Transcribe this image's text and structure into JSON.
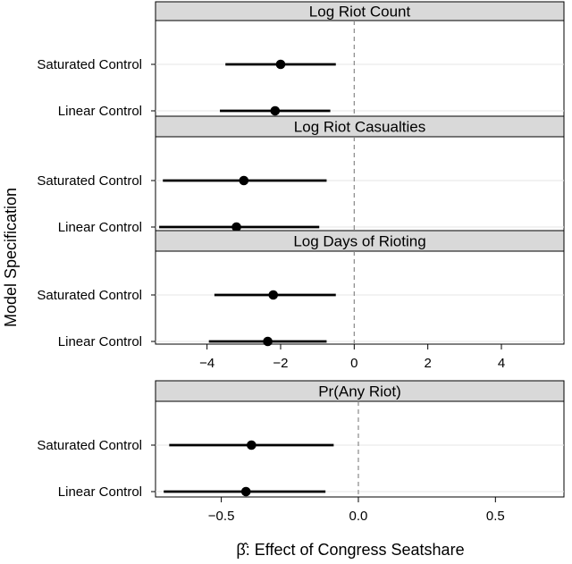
{
  "chart_data": [
    {
      "type": "dotplot",
      "title": "Log Riot Count",
      "ylabel": "Model Specification",
      "xlim": [
        -5.4,
        5.7
      ],
      "xticks": [
        -4,
        -2,
        0,
        2,
        4
      ],
      "xtick_labels": [
        "−4",
        "−2",
        "0",
        "2",
        "4"
      ],
      "reference_line": 0,
      "rows": [
        {
          "label": "Saturated Control",
          "estimate": -2.0,
          "ci": [
            -3.5,
            -0.5
          ]
        },
        {
          "label": "Linear Control",
          "estimate": -2.15,
          "ci": [
            -3.65,
            -0.65
          ]
        }
      ]
    },
    {
      "type": "dotplot",
      "title": "Log Riot Casualties",
      "ylabel": "Model Specification",
      "xlim": [
        -5.4,
        5.7
      ],
      "xticks": [
        -4,
        -2,
        0,
        2,
        4
      ],
      "xtick_labels": [
        "−4",
        "−2",
        "0",
        "2",
        "4"
      ],
      "reference_line": 0,
      "rows": [
        {
          "label": "Saturated Control",
          "estimate": -3.0,
          "ci": [
            -5.2,
            -0.75
          ]
        },
        {
          "label": "Linear Control",
          "estimate": -3.2,
          "ci": [
            -5.3,
            -0.95
          ]
        }
      ]
    },
    {
      "type": "dotplot",
      "title": "Log Days of Rioting",
      "ylabel": "Model Specification",
      "xlim": [
        -5.4,
        5.7
      ],
      "xticks": [
        -4,
        -2,
        0,
        2,
        4
      ],
      "xtick_labels": [
        "−4",
        "−2",
        "0",
        "2",
        "4"
      ],
      "reference_line": 0,
      "rows": [
        {
          "label": "Saturated Control",
          "estimate": -2.2,
          "ci": [
            -3.8,
            -0.5
          ]
        },
        {
          "label": "Linear Control",
          "estimate": -2.35,
          "ci": [
            -3.95,
            -0.75
          ]
        }
      ]
    },
    {
      "type": "dotplot",
      "title": "Pr(Any Riot)",
      "xlabel": "β̂: Effect of Congress Seatshare",
      "xlim": [
        -0.74,
        0.75
      ],
      "xticks": [
        -0.5,
        0.0,
        0.5
      ],
      "xtick_labels": [
        "−0.5",
        "0.0",
        "0.5"
      ],
      "reference_line": 0,
      "rows": [
        {
          "label": "Saturated Control",
          "estimate": -0.39,
          "ci": [
            -0.69,
            -0.09
          ]
        },
        {
          "label": "Linear Control",
          "estimate": -0.41,
          "ci": [
            -0.71,
            -0.12
          ]
        }
      ]
    }
  ]
}
